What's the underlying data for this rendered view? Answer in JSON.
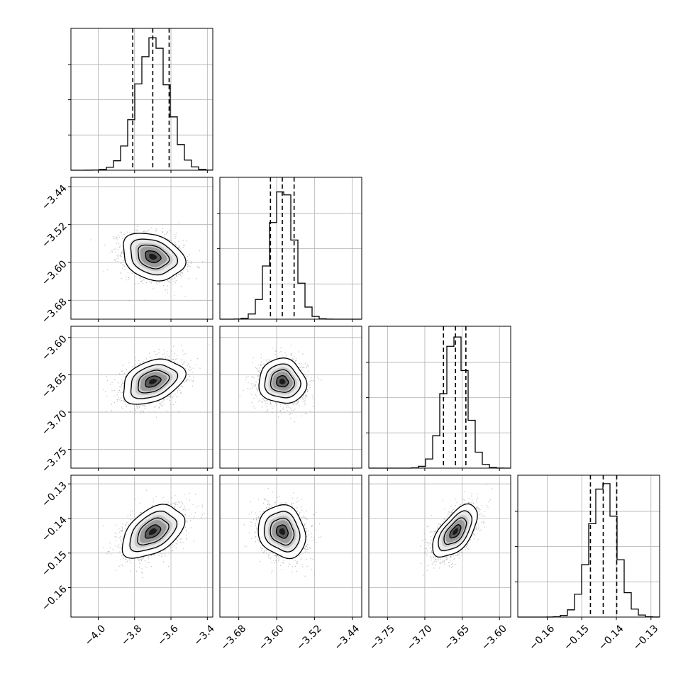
{
  "chart_data": {
    "type": "corner",
    "title": "",
    "parameters": [
      {
        "index": 0,
        "label": "",
        "range": [
          -4.15,
          -3.37
        ],
        "ticks": [
          -4.0,
          -3.8,
          -3.6,
          -3.4
        ],
        "tick_labels": [
          "−4.0",
          "−3.8",
          "−3.6",
          "−3.4"
        ],
        "quantiles": [
          -3.81,
          -3.7,
          -3.61
        ],
        "mean": -3.7,
        "sd": 0.085
      },
      {
        "index": 1,
        "label": "",
        "range": [
          -3.72,
          -3.42
        ],
        "ticks": [
          -3.68,
          -3.6,
          -3.52,
          -3.44
        ],
        "tick_labels": [
          "−3.68",
          "−3.60",
          "−3.52",
          "−3.44"
        ],
        "quantiles": [
          -3.613,
          -3.588,
          -3.563
        ],
        "mean": -3.588,
        "sd": 0.025
      },
      {
        "index": 2,
        "label": "",
        "range": [
          -3.775,
          -3.585
        ],
        "ticks": [
          -3.75,
          -3.7,
          -3.65,
          -3.6
        ],
        "tick_labels": [
          "−3.75",
          "−3.70",
          "−3.65",
          "−3.60"
        ],
        "quantiles": [
          -3.675,
          -3.659,
          -3.645
        ],
        "mean": -3.659,
        "sd": 0.015
      },
      {
        "index": 3,
        "label": "",
        "range": [
          -0.1685,
          -0.1275
        ],
        "ticks": [
          -0.16,
          -0.15,
          -0.14,
          -0.13
        ],
        "tick_labels": [
          "−0.16",
          "−0.15",
          "−0.14",
          "−0.13"
        ],
        "quantiles": [
          -0.1475,
          -0.1438,
          -0.1399
        ],
        "mean": -0.1438,
        "sd": 0.0038
      }
    ],
    "correlations": [
      {
        "pair": [
          1,
          0
        ],
        "rho": -0.25
      },
      {
        "pair": [
          2,
          0
        ],
        "rho": 0.35
      },
      {
        "pair": [
          2,
          1
        ],
        "rho": -0.05
      },
      {
        "pair": [
          3,
          0
        ],
        "rho": 0.45
      },
      {
        "pair": [
          3,
          1
        ],
        "rho": -0.15
      },
      {
        "pair": [
          3,
          2
        ],
        "rho": 0.6
      }
    ],
    "histogram_bins": 20,
    "contour_levels_sigma": [
      0.5,
      1.0,
      1.5,
      2.0
    ],
    "grid": true,
    "colors": {
      "line": "#000000",
      "points": "#8a8a8a",
      "grid": "#b0b0b0",
      "density_dark": "#000000",
      "density_light": "#ffffff"
    }
  }
}
